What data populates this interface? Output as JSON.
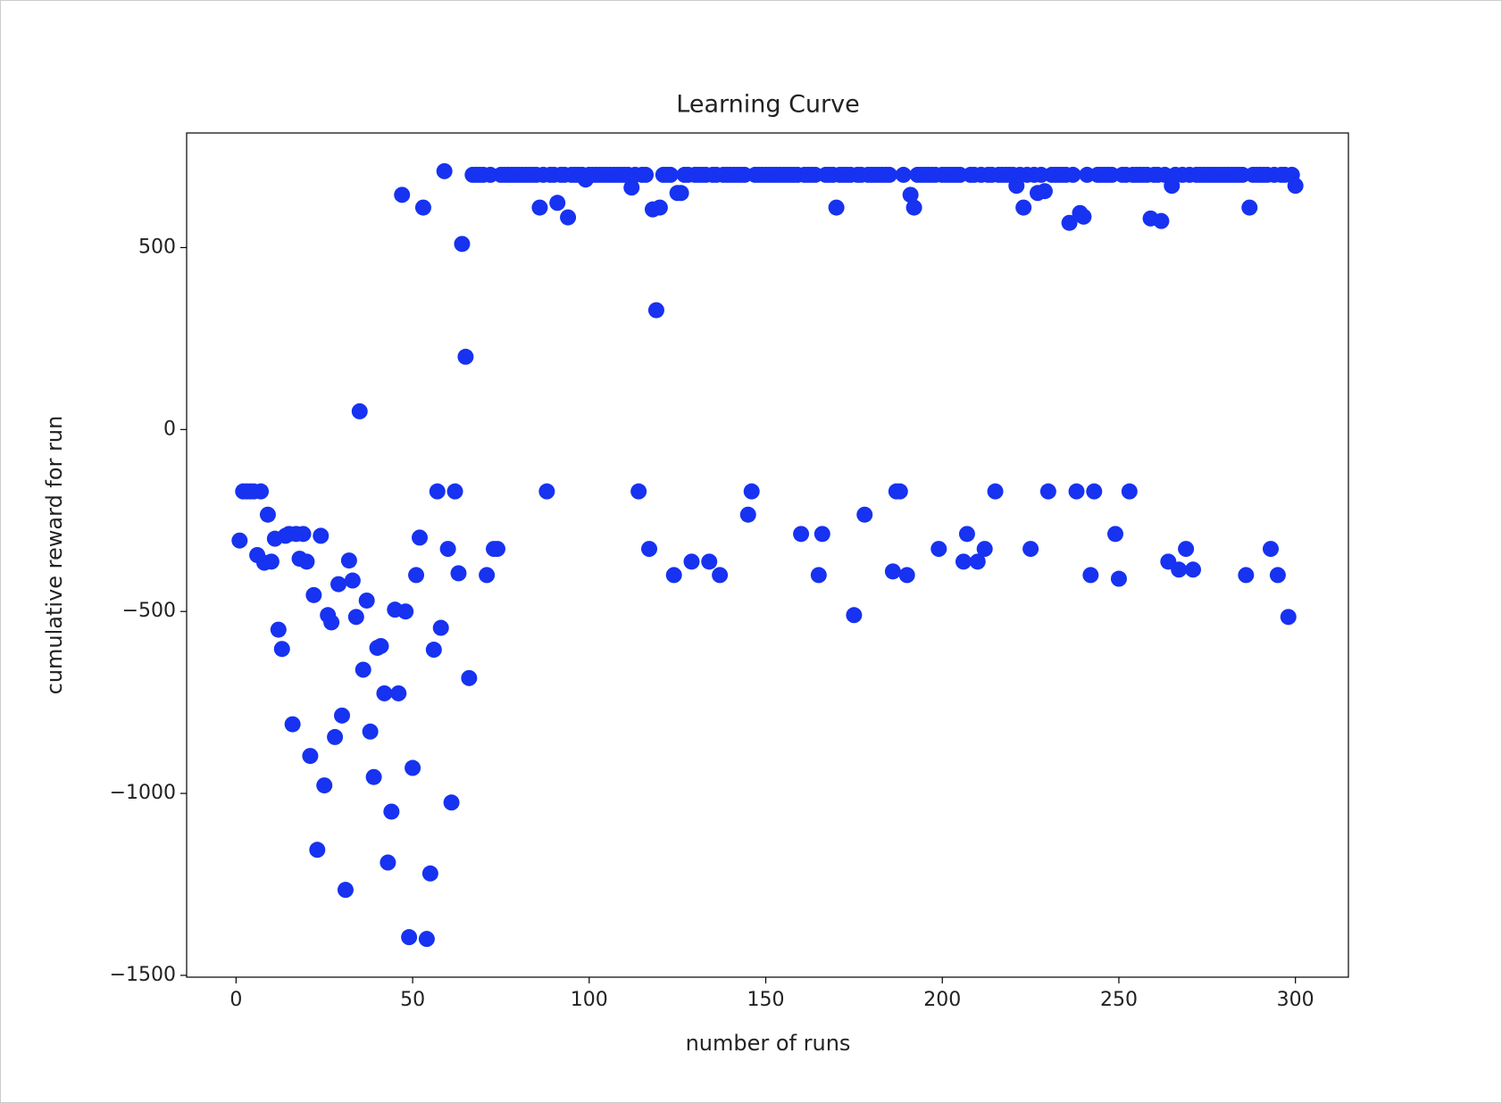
{
  "chart_data": {
    "type": "scatter",
    "title": "Learning Curve",
    "x_label": "number of runs",
    "y_label": "cumulative reward for run",
    "color": "#1732f0",
    "xlim": [
      -14,
      315
    ],
    "ylim": [
      -1505,
      815
    ],
    "xticks": [
      0,
      50,
      100,
      150,
      200,
      250,
      300
    ],
    "yticks": [
      {
        "value": -1500,
        "label": "−1500"
      },
      {
        "value": -1000,
        "label": "−1000"
      },
      {
        "value": -500,
        "label": "−500"
      },
      0,
      500
    ],
    "x": [
      1,
      2,
      3,
      4,
      5,
      6,
      7,
      8,
      9,
      10,
      11,
      12,
      13,
      14,
      15,
      16,
      17,
      18,
      19,
      20,
      21,
      22,
      23,
      24,
      25,
      26,
      27,
      28,
      29,
      30,
      31,
      32,
      33,
      34,
      35,
      36,
      37,
      38,
      39,
      40,
      41,
      42,
      43,
      44,
      45,
      46,
      47,
      48,
      49,
      50,
      51,
      52,
      53,
      54,
      55,
      56,
      57,
      58,
      59,
      60,
      61,
      62,
      63,
      64,
      65,
      66,
      67,
      68,
      69,
      70,
      71,
      72,
      73,
      74,
      75,
      76,
      77,
      78,
      79,
      80,
      81,
      82,
      83,
      84,
      85,
      86,
      87,
      88,
      89,
      90,
      91,
      92,
      93,
      94,
      95,
      96,
      97,
      98,
      99,
      100,
      101,
      102,
      103,
      104,
      105,
      106,
      107,
      108,
      109,
      110,
      111,
      112,
      113,
      114,
      115,
      116,
      117,
      118,
      119,
      120,
      121,
      122,
      123,
      124,
      125,
      126,
      127,
      128,
      129,
      130,
      131,
      132,
      133,
      134,
      135,
      136,
      137,
      138,
      139,
      140,
      141,
      142,
      143,
      144,
      145,
      146,
      147,
      148,
      149,
      150,
      151,
      152,
      153,
      154,
      155,
      156,
      157,
      158,
      159,
      160,
      161,
      162,
      163,
      164,
      165,
      166,
      167,
      168,
      169,
      170,
      171,
      172,
      173,
      174,
      175,
      176,
      177,
      178,
      179,
      180,
      181,
      182,
      183,
      184,
      185,
      186,
      187,
      188,
      189,
      190,
      191,
      192,
      193,
      194,
      195,
      196,
      197,
      198,
      199,
      200,
      201,
      202,
      203,
      204,
      205,
      206,
      207,
      208,
      209,
      210,
      211,
      212,
      213,
      214,
      215,
      216,
      217,
      218,
      219,
      220,
      221,
      222,
      223,
      224,
      225,
      226,
      227,
      228,
      229,
      230,
      231,
      232,
      233,
      234,
      235,
      236,
      237,
      238,
      239,
      240,
      241,
      242,
      243,
      244,
      245,
      246,
      247,
      248,
      249,
      250,
      251,
      252,
      253,
      254,
      255,
      256,
      257,
      258,
      259,
      260,
      261,
      262,
      263,
      264,
      265,
      266,
      267,
      268,
      269,
      270,
      271,
      272,
      273,
      274,
      275,
      276,
      277,
      278,
      279,
      280,
      281,
      282,
      283,
      284,
      285,
      286,
      287,
      288,
      289,
      290,
      291,
      292,
      293,
      294,
      295,
      296,
      297,
      298,
      299,
      300
    ],
    "values": [
      -305,
      -170,
      -170,
      -170,
      -170,
      -345,
      -170,
      -366,
      -234,
      -363,
      -300,
      -550,
      -603,
      -292,
      -287,
      -810,
      -287,
      -355,
      -287,
      -363,
      -897,
      -455,
      -1155,
      -292,
      -978,
      -510,
      -530,
      -845,
      -425,
      -786,
      -1265,
      -360,
      -415,
      -515,
      50,
      -660,
      -470,
      -830,
      -955,
      -600,
      -595,
      -725,
      -1190,
      -1050,
      -495,
      -725,
      645,
      -500,
      -1395,
      -930,
      -400,
      -297,
      610,
      -1400,
      -1220,
      -605,
      -170,
      -545,
      710,
      -328,
      -1025,
      -170,
      -395,
      510,
      200,
      -683,
      700,
      700,
      700,
      700,
      -400,
      700,
      -328,
      -328,
      700,
      700,
      700,
      700,
      700,
      700,
      700,
      700,
      700,
      700,
      700,
      610,
      700,
      -170,
      700,
      700,
      623,
      700,
      700,
      583,
      700,
      700,
      700,
      700,
      687,
      700,
      700,
      700,
      700,
      700,
      700,
      700,
      700,
      700,
      700,
      700,
      700,
      665,
      700,
      -170,
      700,
      700,
      -328,
      605,
      328,
      610,
      700,
      700,
      700,
      -400,
      650,
      650,
      700,
      700,
      -363,
      700,
      700,
      700,
      700,
      -363,
      700,
      700,
      -400,
      700,
      700,
      700,
      700,
      700,
      700,
      700,
      -234,
      -170,
      700,
      700,
      700,
      700,
      700,
      700,
      700,
      700,
      700,
      700,
      700,
      700,
      700,
      -287,
      700,
      700,
      700,
      700,
      -400,
      -287,
      700,
      700,
      700,
      610,
      700,
      700,
      700,
      700,
      -510,
      700,
      700,
      -234,
      700,
      700,
      700,
      700,
      700,
      700,
      700,
      -390,
      -170,
      -170,
      700,
      -400,
      645,
      610,
      700,
      700,
      700,
      700,
      700,
      700,
      -328,
      700,
      700,
      700,
      700,
      700,
      700,
      -363,
      -287,
      700,
      700,
      -363,
      700,
      -328,
      700,
      700,
      -170,
      700,
      700,
      700,
      700,
      700,
      670,
      700,
      610,
      700,
      -328,
      700,
      650,
      700,
      655,
      -170,
      700,
      700,
      700,
      700,
      700,
      568,
      700,
      -170,
      595,
      585,
      700,
      -400,
      -170,
      700,
      700,
      700,
      700,
      700,
      -287,
      -410,
      700,
      700,
      -170,
      700,
      700,
      700,
      700,
      700,
      580,
      700,
      700,
      573,
      700,
      -363,
      670,
      700,
      -385,
      700,
      -328,
      700,
      -385,
      700,
      700,
      700,
      700,
      700,
      700,
      700,
      700,
      700,
      700,
      700,
      700,
      700,
      700,
      -400,
      610,
      700,
      700,
      700,
      700,
      700,
      -328,
      700,
      -400,
      700,
      700,
      -515,
      700,
      670
    ]
  }
}
